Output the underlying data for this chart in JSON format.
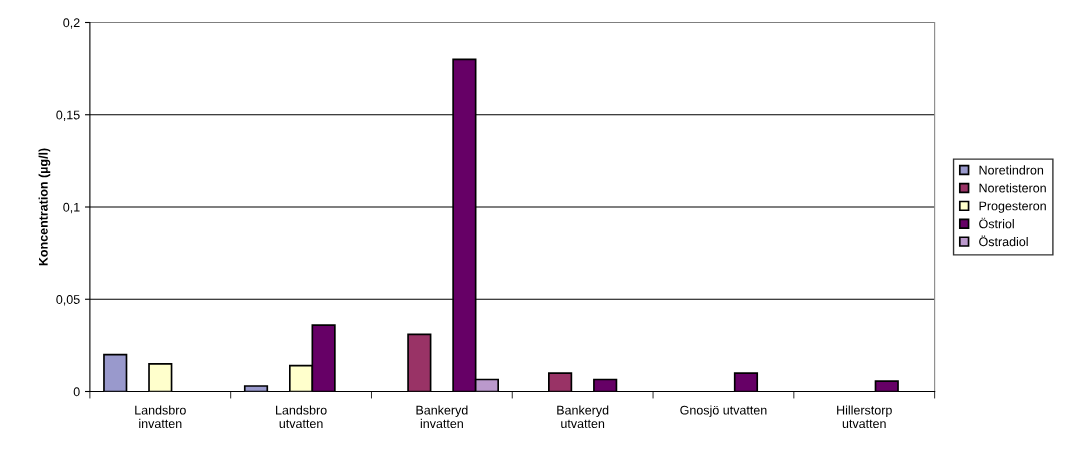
{
  "chart_data": {
    "type": "bar",
    "ylabel": "Koncentration (µg/l)",
    "categories": [
      "Landsbro\ninvatten",
      "Landsbro\nutvatten",
      "Bankeryd\ninvatten",
      "Bankeryd\nutvatten",
      "Gnosjö utvatten",
      "Hillerstorp\nutvatten"
    ],
    "series": [
      {
        "name": "Noretindron",
        "color": "#9999cc",
        "values": [
          0.02,
          0.003,
          null,
          null,
          null,
          null
        ]
      },
      {
        "name": "Noretisteron",
        "color": "#993366",
        "values": [
          null,
          null,
          0.031,
          0.01,
          null,
          null
        ]
      },
      {
        "name": "Progesteron",
        "color": "#ffffcc",
        "values": [
          0.015,
          0.014,
          null,
          null,
          null,
          null
        ]
      },
      {
        "name": "Östriol",
        "color": "#660066",
        "values": [
          null,
          0.036,
          0.18,
          0.0065,
          0.01,
          0.0056
        ]
      },
      {
        "name": "Östradiol",
        "color": "#bb99cc",
        "values": [
          null,
          null,
          0.0065,
          null,
          null,
          null
        ]
      }
    ],
    "ylim": [
      0,
      0.2
    ],
    "yticks": [
      {
        "value": 0,
        "label": "0"
      },
      {
        "value": 0.05,
        "label": "0,05"
      },
      {
        "value": 0.1,
        "label": "0,1"
      },
      {
        "value": 0.15,
        "label": "0,15"
      },
      {
        "value": 0.2,
        "label": "0,2"
      }
    ],
    "grid": "y",
    "legend": "right"
  }
}
